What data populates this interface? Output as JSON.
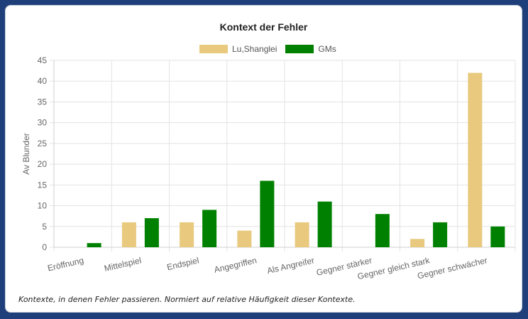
{
  "chart_data": {
    "type": "bar",
    "title": "Kontext der Fehler",
    "ylabel": "Av Blunder",
    "xlabel": "",
    "ylim": [
      0,
      45
    ],
    "yticks": [
      0,
      5,
      10,
      15,
      20,
      25,
      30,
      35,
      40,
      45
    ],
    "grid": true,
    "legend_position": "top",
    "categories": [
      "Eröffnung",
      "Mittelspiel",
      "Endspiel",
      "Angegriffen",
      "Als Angreifer",
      "Gegner stärker",
      "Gegner gleich stark",
      "Gegner schwächer"
    ],
    "series": [
      {
        "name": "Lu,Shanglei",
        "color": "#e8c97e",
        "values": [
          0,
          6,
          6,
          4,
          6,
          0,
          2,
          42
        ]
      },
      {
        "name": "GMs",
        "color": "#008000",
        "values": [
          1,
          7,
          9,
          16,
          11,
          8,
          6,
          5
        ]
      }
    ]
  },
  "caption": "Kontexte, in denen Fehler passieren. Normiert auf relative Häufigkeit dieser Kontexte."
}
